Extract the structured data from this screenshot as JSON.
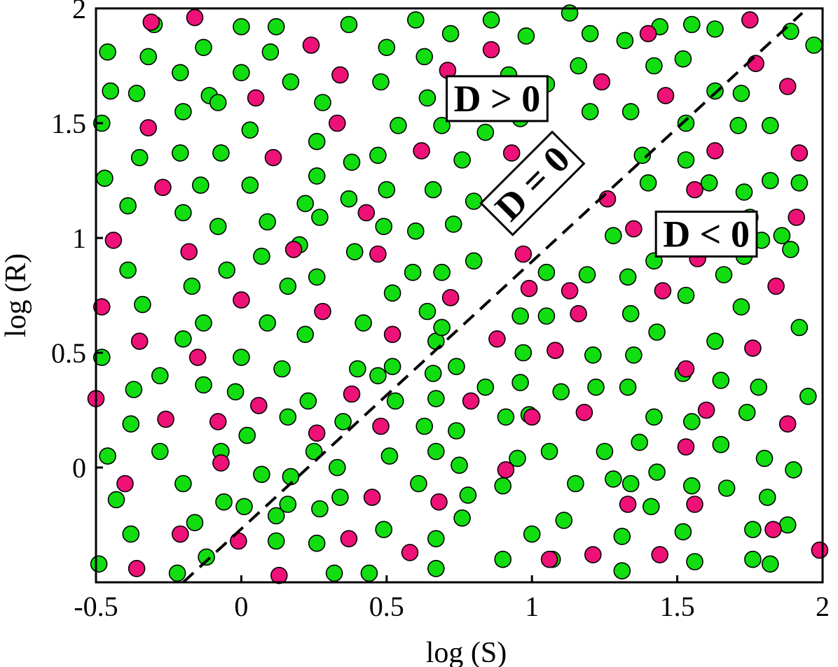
{
  "chart_data": {
    "type": "scatter",
    "xlabel": "log (S)",
    "ylabel": "log (R)",
    "xlim": [
      -0.5,
      2.0
    ],
    "ylim": [
      -0.5,
      2.0
    ],
    "x_ticks": [
      -0.5,
      0,
      0.5,
      1,
      1.5,
      2
    ],
    "x_tick_labels": [
      "-0.5",
      "0",
      "0.5",
      "1",
      "1.5",
      "2"
    ],
    "y_ticks": [
      0,
      0.5,
      1,
      1.5,
      2
    ],
    "y_tick_labels": [
      "0",
      "0.5",
      "1",
      "1.5",
      "2"
    ],
    "grid": false,
    "colors": {
      "series_a": "#11dd11",
      "series_b": "#ee1177",
      "axis": "#000000",
      "background": "#ffffff"
    },
    "boundary": {
      "style": "dashed",
      "x": [
        -0.2,
        1.93
      ],
      "y": [
        -0.5,
        1.98
      ]
    },
    "annotations": [
      {
        "text": "D > 0",
        "x": 0.88,
        "y": 1.61,
        "rotation": 0
      },
      {
        "text": "D = 0",
        "x": 1.0,
        "y": 1.24,
        "rotation": -45
      },
      {
        "text": "D < 0",
        "x": 1.6,
        "y": 1.02,
        "rotation": 0
      }
    ],
    "series": [
      {
        "color": "#11dd11",
        "points": [
          [
            -0.48,
            1.5
          ],
          [
            -0.46,
            1.81
          ],
          [
            -0.45,
            1.64
          ],
          [
            -0.47,
            1.26
          ],
          [
            -0.48,
            0.48
          ],
          [
            -0.46,
            0.05
          ],
          [
            -0.43,
            -0.14
          ],
          [
            -0.49,
            -0.42
          ],
          [
            -0.3,
            1.93
          ],
          [
            -0.36,
            1.63
          ],
          [
            -0.35,
            1.35
          ],
          [
            -0.39,
            1.14
          ],
          [
            -0.39,
            0.86
          ],
          [
            -0.34,
            0.71
          ],
          [
            -0.37,
            0.34
          ],
          [
            -0.38,
            0.19
          ],
          [
            -0.28,
            0.07
          ],
          [
            -0.38,
            -0.29
          ],
          [
            -0.32,
            1.79
          ],
          [
            -0.28,
            0.4
          ],
          [
            -0.21,
            1.72
          ],
          [
            -0.2,
            1.55
          ],
          [
            -0.21,
            1.37
          ],
          [
            -0.2,
            1.11
          ],
          [
            -0.2,
            0.56
          ],
          [
            -0.2,
            -0.07
          ],
          [
            -0.22,
            -0.46
          ],
          [
            -0.13,
            1.83
          ],
          [
            -0.11,
            1.62
          ],
          [
            -0.14,
            1.23
          ],
          [
            -0.17,
            0.79
          ],
          [
            -0.13,
            0.63
          ],
          [
            -0.13,
            0.36
          ],
          [
            -0.06,
            -0.15
          ],
          [
            -0.16,
            -0.24
          ],
          [
            -0.12,
            -0.39
          ],
          [
            0.0,
            1.92
          ],
          [
            -0.08,
            1.59
          ],
          [
            -0.07,
            1.37
          ],
          [
            -0.08,
            1.05
          ],
          [
            -0.05,
            0.86
          ],
          [
            -0.07,
            0.07
          ],
          [
            0.0,
            1.72
          ],
          [
            0.12,
            1.92
          ],
          [
            0.1,
            1.81
          ],
          [
            0.03,
            1.47
          ],
          [
            0.03,
            1.23
          ],
          [
            0.09,
            1.07
          ],
          [
            0.07,
            0.92
          ],
          [
            0.09,
            0.63
          ],
          [
            0.0,
            0.48
          ],
          [
            -0.02,
            0.33
          ],
          [
            0.02,
            0.14
          ],
          [
            0.07,
            -0.03
          ],
          [
            0.01,
            -0.17
          ],
          [
            0.12,
            -0.21
          ],
          [
            0.12,
            -0.32
          ],
          [
            0.17,
            1.68
          ],
          [
            0.22,
            1.15
          ],
          [
            0.2,
            0.97
          ],
          [
            0.16,
            0.79
          ],
          [
            0.22,
            0.58
          ],
          [
            0.14,
            0.43
          ],
          [
            0.16,
            0.22
          ],
          [
            0.17,
            -0.04
          ],
          [
            0.16,
            -0.16
          ],
          [
            0.26,
            1.42
          ],
          [
            0.28,
            1.59
          ],
          [
            0.26,
            1.27
          ],
          [
            0.27,
            1.09
          ],
          [
            0.26,
            0.83
          ],
          [
            0.23,
            0.29
          ],
          [
            0.25,
            0.07
          ],
          [
            0.27,
            -0.18
          ],
          [
            0.26,
            -0.33
          ],
          [
            0.32,
            -0.46
          ],
          [
            0.37,
            1.93
          ],
          [
            0.38,
            1.33
          ],
          [
            0.37,
            1.17
          ],
          [
            0.39,
            0.94
          ],
          [
            0.35,
            0.2
          ],
          [
            0.33,
            0.0
          ],
          [
            0.34,
            -0.13
          ],
          [
            0.4,
            0.43
          ],
          [
            0.42,
            0.63
          ],
          [
            0.44,
            -0.46
          ],
          [
            0.5,
            1.83
          ],
          [
            0.48,
            1.68
          ],
          [
            0.54,
            1.49
          ],
          [
            0.47,
            1.36
          ],
          [
            0.5,
            1.21
          ],
          [
            0.49,
            1.05
          ],
          [
            0.52,
            0.76
          ],
          [
            0.52,
            0.44
          ],
          [
            0.47,
            0.4
          ],
          [
            0.53,
            0.29
          ],
          [
            0.51,
            0.05
          ],
          [
            0.49,
            -0.27
          ],
          [
            0.6,
            1.95
          ],
          [
            0.63,
            1.79
          ],
          [
            0.64,
            1.61
          ],
          [
            0.66,
            1.21
          ],
          [
            0.6,
            1.03
          ],
          [
            0.59,
            0.85
          ],
          [
            0.64,
            0.68
          ],
          [
            0.67,
            0.55
          ],
          [
            0.66,
            0.41
          ],
          [
            0.67,
            0.3
          ],
          [
            0.63,
            0.18
          ],
          [
            0.67,
            0.07
          ],
          [
            0.61,
            -0.07
          ],
          [
            0.67,
            -0.31
          ],
          [
            0.67,
            -0.44
          ],
          [
            0.72,
            1.89
          ],
          [
            0.69,
            1.49
          ],
          [
            0.76,
            1.34
          ],
          [
            0.73,
            1.06
          ],
          [
            0.69,
            0.61
          ],
          [
            0.74,
            0.44
          ],
          [
            0.74,
            0.16
          ],
          [
            0.75,
            0.01
          ],
          [
            0.78,
            -0.12
          ],
          [
            0.76,
            -0.22
          ],
          [
            0.69,
            0.85
          ],
          [
            0.86,
            1.95
          ],
          [
            0.83,
            1.58
          ],
          [
            0.84,
            1.46
          ],
          [
            0.8,
            1.16
          ],
          [
            0.8,
            0.9
          ],
          [
            0.84,
            0.35
          ],
          [
            0.91,
            0.22
          ],
          [
            0.9,
            -0.4
          ],
          [
            0.9,
            -0.08
          ],
          [
            0.98,
            1.88
          ],
          [
            0.92,
            1.71
          ],
          [
            0.96,
            1.52
          ],
          [
            0.97,
            1.2
          ],
          [
            0.96,
            0.66
          ],
          [
            0.97,
            0.5
          ],
          [
            0.96,
            0.37
          ],
          [
            0.99,
            0.23
          ],
          [
            0.95,
            0.04
          ],
          [
            1.0,
            -0.29
          ],
          [
            1.05,
            1.67
          ],
          [
            1.07,
            1.39
          ],
          [
            1.05,
            0.85
          ],
          [
            1.05,
            0.66
          ],
          [
            1.1,
            0.33
          ],
          [
            1.06,
            0.07
          ],
          [
            1.11,
            -0.23
          ],
          [
            1.07,
            -0.4
          ],
          [
            1.13,
            1.98
          ],
          [
            1.16,
            1.75
          ],
          [
            1.15,
            -0.07
          ],
          [
            1.2,
            1.89
          ],
          [
            1.2,
            1.55
          ],
          [
            1.19,
            0.84
          ],
          [
            1.21,
            0.49
          ],
          [
            1.22,
            0.35
          ],
          [
            1.25,
            0.07
          ],
          [
            1.28,
            -0.05
          ],
          [
            1.31,
            -0.3
          ],
          [
            1.31,
            -0.45
          ],
          [
            1.32,
            1.86
          ],
          [
            1.34,
            1.55
          ],
          [
            1.28,
            1.01
          ],
          [
            1.33,
            0.83
          ],
          [
            1.34,
            0.67
          ],
          [
            1.35,
            0.49
          ],
          [
            1.33,
            0.35
          ],
          [
            1.37,
            0.11
          ],
          [
            1.34,
            -0.07
          ],
          [
            1.42,
            1.75
          ],
          [
            1.38,
            1.36
          ],
          [
            1.4,
            1.24
          ],
          [
            1.42,
            0.9
          ],
          [
            1.43,
            0.59
          ],
          [
            1.42,
            0.22
          ],
          [
            1.43,
            -0.02
          ],
          [
            1.41,
            -0.17
          ],
          [
            1.44,
            1.92
          ],
          [
            1.52,
            1.78
          ],
          [
            1.53,
            1.5
          ],
          [
            1.53,
            1.34
          ],
          [
            1.53,
            0.75
          ],
          [
            1.52,
            0.41
          ],
          [
            1.55,
            0.2
          ],
          [
            1.55,
            -0.08
          ],
          [
            1.52,
            -0.28
          ],
          [
            1.56,
            -0.41
          ],
          [
            1.55,
            1.93
          ],
          [
            1.63,
            1.91
          ],
          [
            1.63,
            1.64
          ],
          [
            1.61,
            1.24
          ],
          [
            1.63,
            0.55
          ],
          [
            1.65,
            0.38
          ],
          [
            1.65,
            0.1
          ],
          [
            1.67,
            -0.09
          ],
          [
            1.66,
            0.84
          ],
          [
            1.67,
            1.02
          ],
          [
            1.71,
            1.49
          ],
          [
            1.72,
            1.63
          ],
          [
            1.75,
            1.09
          ],
          [
            1.73,
            0.92
          ],
          [
            1.72,
            0.7
          ],
          [
            1.74,
            0.24
          ],
          [
            1.76,
            -0.27
          ],
          [
            1.76,
            -0.4
          ],
          [
            1.73,
            1.2
          ],
          [
            1.82,
            1.49
          ],
          [
            1.82,
            1.25
          ],
          [
            1.78,
            0.35
          ],
          [
            1.8,
            0.04
          ],
          [
            1.81,
            -0.13
          ],
          [
            1.82,
            -0.42
          ],
          [
            1.79,
            0.99
          ],
          [
            1.89,
            1.9
          ],
          [
            1.86,
            1.01
          ],
          [
            1.89,
            0.95
          ],
          [
            1.92,
            0.61
          ],
          [
            1.88,
            -0.25
          ],
          [
            1.9,
            -0.01
          ],
          [
            1.92,
            1.24
          ],
          [
            1.97,
            1.84
          ],
          [
            1.95,
            0.31
          ]
        ]
      },
      {
        "color": "#ee1177",
        "points": [
          [
            -0.31,
            1.94
          ],
          [
            -0.16,
            1.96
          ],
          [
            -0.32,
            1.48
          ],
          [
            -0.5,
            0.3
          ],
          [
            -0.48,
            0.7
          ],
          [
            -0.44,
            0.99
          ],
          [
            -0.35,
            0.55
          ],
          [
            -0.4,
            -0.07
          ],
          [
            -0.36,
            -0.44
          ],
          [
            -0.27,
            1.22
          ],
          [
            -0.26,
            0.21
          ],
          [
            -0.18,
            0.94
          ],
          [
            -0.21,
            -0.29
          ],
          [
            -0.15,
            0.48
          ],
          [
            -0.08,
            0.2
          ],
          [
            -0.07,
            0.02
          ],
          [
            0.0,
            0.73
          ],
          [
            0.05,
            1.61
          ],
          [
            0.06,
            0.27
          ],
          [
            0.11,
            1.35
          ],
          [
            0.18,
            0.95
          ],
          [
            0.13,
            -0.47
          ],
          [
            -0.01,
            -0.32
          ],
          [
            0.24,
            1.84
          ],
          [
            0.28,
            0.68
          ],
          [
            0.26,
            0.15
          ],
          [
            0.33,
            1.5
          ],
          [
            0.34,
            1.71
          ],
          [
            0.38,
            0.32
          ],
          [
            0.37,
            -0.31
          ],
          [
            0.43,
            1.11
          ],
          [
            0.47,
            0.93
          ],
          [
            0.48,
            0.18
          ],
          [
            0.45,
            -0.13
          ],
          [
            0.52,
            0.58
          ],
          [
            0.62,
            1.38
          ],
          [
            0.58,
            -0.37
          ],
          [
            0.71,
            1.73
          ],
          [
            0.68,
            -0.15
          ],
          [
            0.72,
            0.74
          ],
          [
            0.79,
            0.29
          ],
          [
            0.86,
            1.82
          ],
          [
            0.88,
            0.56
          ],
          [
            0.91,
            -0.01
          ],
          [
            0.93,
            1.37
          ],
          [
            0.97,
            0.93
          ],
          [
            0.99,
            0.78
          ],
          [
            1.0,
            0.22
          ],
          [
            1.06,
            -0.4
          ],
          [
            1.08,
            1.29
          ],
          [
            1.08,
            0.51
          ],
          [
            1.13,
            0.77
          ],
          [
            1.16,
            0.67
          ],
          [
            1.18,
            0.24
          ],
          [
            1.21,
            -0.38
          ],
          [
            1.26,
            1.17
          ],
          [
            1.24,
            1.68
          ],
          [
            1.35,
            1.04
          ],
          [
            1.33,
            -0.16
          ],
          [
            1.4,
            1.89
          ],
          [
            1.45,
            0.77
          ],
          [
            1.46,
            1.62
          ],
          [
            1.44,
            -0.38
          ],
          [
            1.53,
            0.43
          ],
          [
            1.56,
            1.21
          ],
          [
            1.63,
            1.38
          ],
          [
            1.57,
            0.91
          ],
          [
            1.6,
            0.25
          ],
          [
            1.53,
            0.09
          ],
          [
            1.75,
            1.95
          ],
          [
            1.77,
            1.76
          ],
          [
            1.76,
            0.52
          ],
          [
            1.84,
            0.79
          ],
          [
            1.88,
            0.19
          ],
          [
            1.83,
            -0.27
          ],
          [
            1.88,
            1.66
          ],
          [
            1.92,
            1.37
          ],
          [
            1.91,
            1.09
          ],
          [
            1.99,
            -0.36
          ],
          [
            1.56,
            -0.16
          ]
        ]
      }
    ]
  }
}
